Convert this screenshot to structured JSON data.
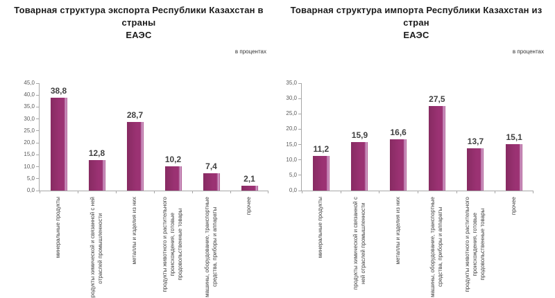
{
  "page": {
    "background_color": "#ffffff",
    "axis_color": "#a6a6a6",
    "tick_label_color": "#595959",
    "category_label_color": "#404040",
    "value_label_color": "#404040",
    "title_color": "#1a1a1a"
  },
  "chart_data": [
    {
      "type": "bar",
      "title": "Товарная структура экспорта Республики Казахстан в страны\nЕАЭС",
      "units_note": "в процентах",
      "categories": [
        "минеральные продукты",
        "продукты химической и связанной с ней\nотраслей промышленности",
        "металлы и изделия из них",
        "продукты животного и растительного\nпроисхождения, готовые\nпродовольственные товары",
        "машины, оборудование, транспортные\nсредства, приборы и аппараты",
        "прочее"
      ],
      "values": [
        38.8,
        12.8,
        28.7,
        10.2,
        7.4,
        2.1
      ],
      "value_labels": [
        "38,8",
        "12,8",
        "28,7",
        "10,2",
        "7,4",
        "2,1"
      ],
      "ylim": [
        0,
        45
      ],
      "ytick_step": 5,
      "ytick_labels": [
        "0,0",
        "5,0",
        "10,0",
        "15,0",
        "20,0",
        "25,0",
        "30,0",
        "35,0",
        "40,0",
        "45,0"
      ],
      "bar_color": "#9B3273",
      "bar_color_dark": "#872B62",
      "bar_edge_highlight": "#CC96C2",
      "grid": false,
      "legend": "none"
    },
    {
      "type": "bar",
      "title": "Товарная структура импорта Республики Казахстан из стран\nЕАЭС",
      "units_note": "в процентах",
      "categories": [
        "минеральные продукты",
        "продукты химической и связанной с\nней отраслей промышленности",
        "металлы и изделия из них",
        "машины, оборудование, транспортные\nсредства, приборы и аппараты",
        "продукты животного и растительного\nпроисхождения, готовые\nпродовольственные товары",
        "прочее"
      ],
      "values": [
        11.2,
        15.9,
        16.6,
        27.5,
        13.7,
        15.1
      ],
      "value_labels": [
        "11,2",
        "15,9",
        "16,6",
        "27,5",
        "13,7",
        "15,1"
      ],
      "ylim": [
        0,
        35
      ],
      "ytick_step": 5,
      "ytick_labels": [
        "0,0",
        "5,0",
        "10,0",
        "15,0",
        "20,0",
        "25,0",
        "30,0",
        "35,0"
      ],
      "bar_color": "#9B3273",
      "bar_color_dark": "#872B62",
      "bar_edge_highlight": "#CC96C2",
      "grid": false,
      "legend": "none"
    }
  ]
}
